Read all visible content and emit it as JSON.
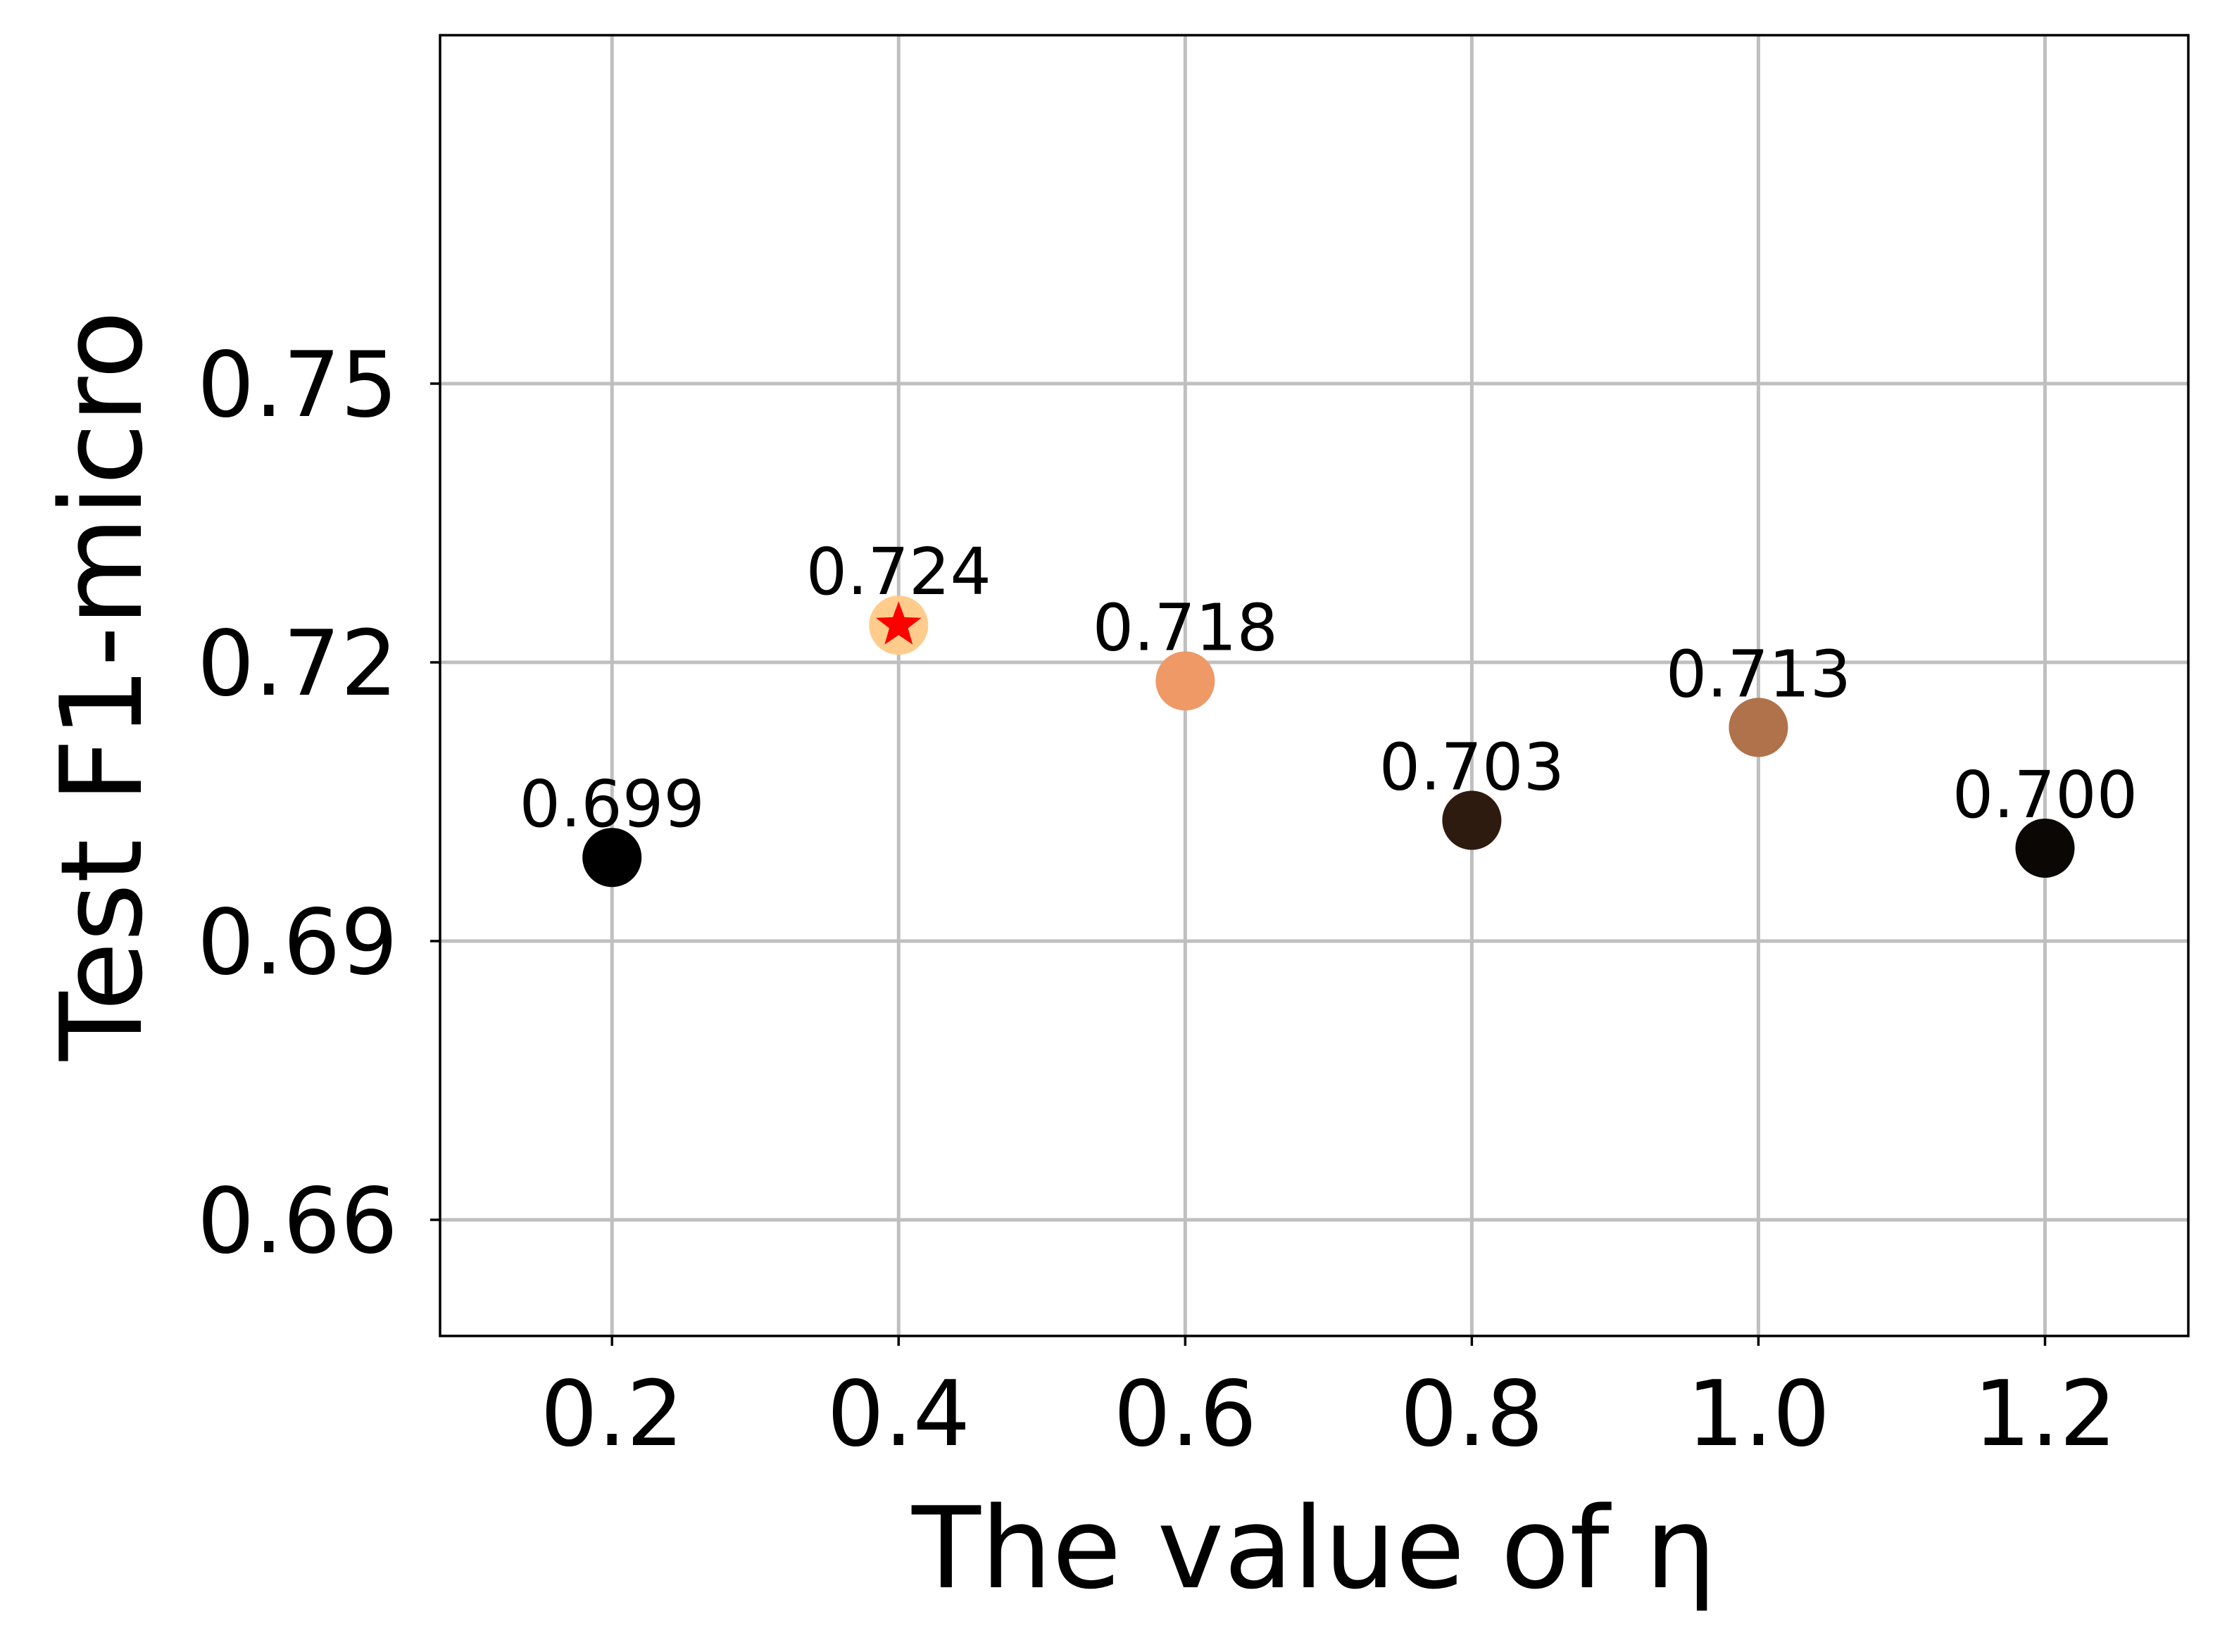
{
  "chart_data": {
    "type": "scatter",
    "title": "",
    "xlabel": "The value of η",
    "ylabel": "Test F1-micro",
    "x_ticks": [
      "0.2",
      "0.4",
      "0.6",
      "0.8",
      "1.0",
      "1.2"
    ],
    "y_ticks": [
      "0.66",
      "0.69",
      "0.72",
      "0.75"
    ],
    "xlim": [
      0.08,
      1.3
    ],
    "ylim": [
      0.6475,
      0.7875
    ],
    "grid": true,
    "points": [
      {
        "x": 0.2,
        "y": 0.699,
        "label": "0.699",
        "color": "#000000"
      },
      {
        "x": 0.4,
        "y": 0.724,
        "label": "0.724",
        "color": "#ffcc8c",
        "marker": "star",
        "marker_color": "#ff0000"
      },
      {
        "x": 0.6,
        "y": 0.718,
        "label": "0.718",
        "color": "#ee9966"
      },
      {
        "x": 0.8,
        "y": 0.703,
        "label": "0.703",
        "color": "#2e1b10"
      },
      {
        "x": 1.0,
        "y": 0.713,
        "label": "0.713",
        "color": "#b0724a"
      },
      {
        "x": 1.2,
        "y": 0.7,
        "label": "0.700",
        "color": "#0a0704"
      }
    ]
  }
}
